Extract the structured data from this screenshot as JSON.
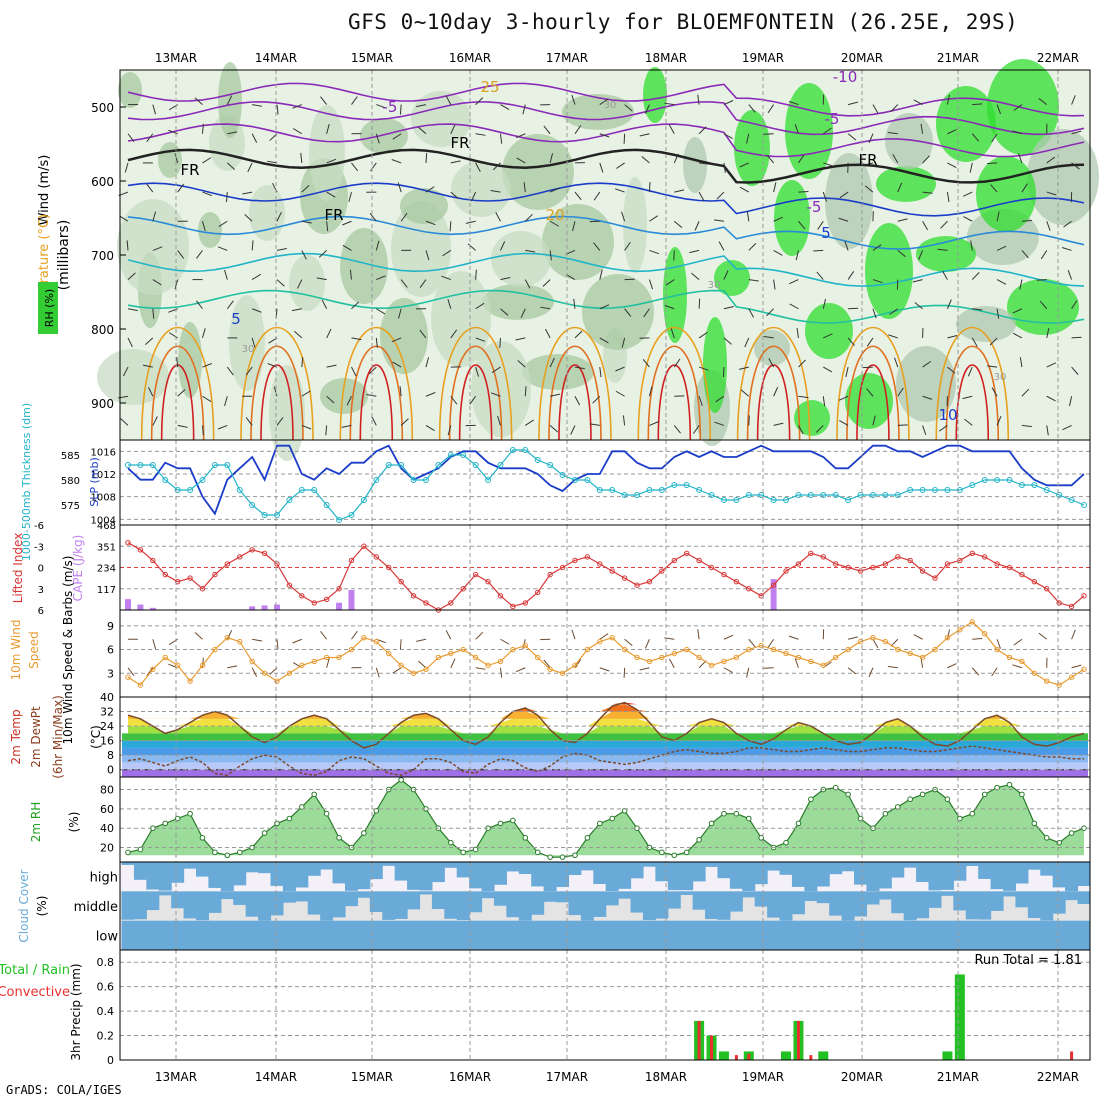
{
  "title": "GFS 0~10day 3-hourly for BLOEMFONTEIN (26.25E, 29S)",
  "credit": "GrADS: COLA/IGES",
  "dates": [
    "13MAR",
    "14MAR",
    "15MAR",
    "16MAR",
    "17MAR",
    "18MAR",
    "19MAR",
    "20MAR",
    "21MAR",
    "22MAR"
  ],
  "colors": {
    "rh_green": "#33cc33",
    "temp_orange": "#e8a020",
    "temp_red": "#d02020",
    "purple": "#8a2ab8",
    "slp_blue": "#1a3cc8",
    "thickness_cyan": "#22b4c8",
    "cape_violet": "#c080f0",
    "wind_orange": "#e89a30",
    "cloud_blue": "#6aaad8",
    "precip_green": "#22c022",
    "precip_red": "#e83030"
  },
  "chart_data": [
    {
      "type": "heatmap",
      "title": "",
      "ylabel": "Wind (m/s) Temperature (°C) RH (%) (millibars)",
      "y_ticks": [
        "500",
        "600",
        "700",
        "800",
        "900"
      ],
      "ylim": [
        950,
        450
      ],
      "isotherm_labels": [
        "-10",
        "-5",
        "-5",
        "FR",
        "FR",
        "FR",
        "FR",
        "-5",
        "5",
        "5",
        "10",
        "25",
        "20",
        "30",
        "30",
        "30",
        "30"
      ],
      "rh_legend": "RH (%)"
    },
    {
      "type": "line",
      "title": "",
      "ylabel_left": "1000-500mb Thickness (dm)",
      "ylabel_right": "SLP (mb)",
      "left_ticks": [
        "585",
        "580",
        "575"
      ],
      "right_ticks": [
        "1016",
        "1012",
        "1008",
        "1004"
      ],
      "series": [
        {
          "name": "SLP (mb)",
          "values": [
            1013,
            1011,
            1011,
            1014,
            1013,
            1013,
            1008,
            1005,
            1011,
            1013,
            1015,
            1011,
            1017,
            1017,
            1012,
            1011,
            1013,
            1012,
            1014,
            1014,
            1016,
            1017,
            1013,
            1011,
            1012,
            1013,
            1015,
            1016,
            1016,
            1014,
            1013,
            1013,
            1013,
            1012,
            1010,
            1009,
            1011,
            1012,
            1012,
            1016,
            1016,
            1014,
            1013,
            1013,
            1015,
            1016,
            1015,
            1016,
            1015,
            1015,
            1016,
            1017,
            1016,
            1016,
            1016,
            1016,
            1015,
            1013,
            1013,
            1015,
            1017,
            1017,
            1016,
            1016,
            1015,
            1016,
            1017,
            1017,
            1016,
            1016,
            1016,
            1016,
            1013,
            1011,
            1010,
            1010,
            1010,
            1012
          ]
        },
        {
          "name": "1000-500mb Thickness (dm)",
          "values": [
            583,
            583,
            583,
            580,
            578,
            578,
            580,
            583,
            583,
            578,
            575,
            573,
            573,
            576,
            578,
            578,
            575,
            572,
            573,
            576,
            580,
            583,
            583,
            580,
            580,
            583,
            585,
            585,
            583,
            580,
            583,
            586,
            586,
            584,
            583,
            581,
            580,
            580,
            578,
            578,
            577,
            577,
            578,
            578,
            579,
            579,
            578,
            577,
            576,
            576,
            577,
            577,
            576,
            576,
            577,
            577,
            577,
            577,
            576,
            577,
            577,
            577,
            577,
            578,
            578,
            578,
            578,
            578,
            579,
            580,
            580,
            580,
            579,
            579,
            578,
            577,
            576,
            575
          ]
        }
      ]
    },
    {
      "type": "bar",
      "title": "",
      "ylabel_left": "Lifted Index",
      "ylabel_right": "CAPE (J/kg)",
      "left_ticks": [
        "-6",
        "-3",
        "0",
        "3",
        "6"
      ],
      "right_ticks": [
        "468",
        "351",
        "234",
        "117"
      ],
      "cape_values": [
        60,
        30,
        12,
        0,
        0,
        0,
        0,
        0,
        0,
        0,
        20,
        25,
        30,
        0,
        0,
        0,
        0,
        40,
        110,
        0,
        0,
        0,
        0,
        0,
        0,
        0,
        0,
        0,
        0,
        0,
        0,
        0,
        0,
        0,
        0,
        0,
        0,
        0,
        0,
        0,
        0,
        0,
        0,
        0,
        0,
        0,
        0,
        0,
        0,
        0,
        0,
        0,
        170,
        0,
        0,
        0,
        0,
        0,
        0,
        0,
        0,
        0,
        0,
        0,
        0,
        0,
        0,
        0,
        0,
        0,
        0,
        0,
        0,
        0,
        0,
        0,
        0,
        0
      ],
      "lifted_index": [
        -3.5,
        -2.5,
        -1,
        1,
        2,
        1.5,
        3,
        1,
        -0.5,
        -1.5,
        -2.5,
        -2,
        -0.5,
        2.5,
        4,
        5,
        4.5,
        3,
        -1,
        -3,
        -1.5,
        0,
        2,
        4,
        5,
        6,
        5,
        3,
        1,
        2,
        4,
        5.5,
        5,
        3.5,
        1,
        0,
        -1,
        -1.5,
        -0.5,
        0.5,
        1.5,
        2.5,
        2,
        0.5,
        -1,
        -2,
        -1,
        0,
        1,
        2,
        3,
        4,
        2.5,
        0.5,
        -0.5,
        -2,
        -1.5,
        -0.5,
        0,
        0.5,
        0,
        -0.5,
        -1.5,
        -1,
        0.5,
        1.5,
        -0.5,
        -1,
        -2,
        -1.5,
        -0.5,
        0,
        1,
        2,
        3,
        5,
        5.5,
        4
      ]
    },
    {
      "type": "line",
      "title": "",
      "ylabel": "10m Wind Speed & Barbs (m/s)",
      "y_ticks": [
        "9",
        "6",
        "3"
      ],
      "series": [
        {
          "name": "10m Wind Speed",
          "values": [
            2.5,
            1.5,
            3.5,
            5,
            4,
            2,
            4,
            6,
            7.5,
            7,
            4.5,
            3,
            2,
            3,
            4,
            4.5,
            5,
            5,
            6,
            7.5,
            7,
            5.5,
            4,
            3,
            3.5,
            5,
            5.5,
            6,
            5,
            4,
            4.5,
            6,
            6.5,
            5,
            3.5,
            3,
            4,
            6,
            7,
            7.5,
            6,
            5,
            4.5,
            5,
            5.5,
            6,
            5,
            4,
            4.5,
            5,
            6,
            6.5,
            6,
            5.5,
            5,
            4.5,
            4,
            5,
            6,
            7,
            7.5,
            7,
            6,
            5.5,
            5,
            6,
            7.5,
            8.5,
            9.5,
            8,
            6,
            5,
            4.5,
            3,
            2,
            1.5,
            2.5,
            3.5
          ]
        }
      ]
    },
    {
      "type": "area",
      "title": "",
      "ylabel": "2m Temp 2m DewPt (6hr Min/Max) (°C)",
      "y_ticks": [
        "40",
        "32",
        "24",
        "16",
        "8",
        "0"
      ],
      "series": [
        {
          "name": "2m Temp",
          "values": [
            30,
            28,
            24,
            20,
            22,
            26,
            30,
            32,
            30,
            24,
            18,
            15,
            18,
            24,
            28,
            30,
            28,
            22,
            16,
            12,
            14,
            20,
            26,
            30,
            31,
            28,
            22,
            16,
            14,
            18,
            26,
            32,
            34,
            30,
            22,
            16,
            15,
            20,
            28,
            35,
            37,
            33,
            26,
            18,
            16,
            20,
            26,
            28,
            26,
            20,
            16,
            14,
            17,
            22,
            26,
            24,
            20,
            16,
            14,
            15,
            20,
            26,
            28,
            24,
            18,
            14,
            13,
            16,
            22,
            28,
            30,
            26,
            18,
            14,
            13,
            15,
            18,
            20
          ]
        },
        {
          "name": "2m DewPt",
          "values": [
            5,
            6,
            4,
            2,
            5,
            7,
            4,
            -2,
            -3,
            2,
            6,
            8,
            7,
            2,
            -2,
            -3,
            -1,
            5,
            7,
            6,
            2,
            -2,
            -3,
            0,
            6,
            6,
            4,
            -1,
            -2,
            3,
            6,
            5,
            1,
            -1,
            2,
            7,
            9,
            8,
            5,
            4,
            3,
            4,
            6,
            8,
            10,
            11,
            10,
            9,
            9,
            10,
            12,
            12,
            11,
            10,
            10,
            11,
            12,
            11,
            10,
            10,
            11,
            12,
            12,
            11,
            10,
            10,
            11,
            12,
            13,
            12,
            11,
            10,
            9,
            8,
            7,
            7,
            6,
            6
          ]
        }
      ]
    },
    {
      "type": "area",
      "title": "",
      "ylabel": "2m RH (%)",
      "y_ticks": [
        "80",
        "60",
        "40",
        "20"
      ],
      "series": [
        {
          "name": "2m RH",
          "values": [
            15,
            18,
            40,
            45,
            50,
            55,
            30,
            15,
            12,
            15,
            20,
            35,
            45,
            50,
            62,
            75,
            55,
            30,
            20,
            35,
            58,
            80,
            90,
            80,
            60,
            40,
            25,
            15,
            18,
            40,
            45,
            48,
            30,
            15,
            10,
            10,
            12,
            30,
            45,
            50,
            58,
            40,
            20,
            15,
            12,
            15,
            28,
            45,
            55,
            55,
            50,
            30,
            20,
            25,
            45,
            70,
            80,
            82,
            75,
            50,
            40,
            55,
            62,
            70,
            75,
            80,
            70,
            50,
            55,
            75,
            82,
            85,
            75,
            45,
            30,
            25,
            35,
            40
          ]
        }
      ]
    },
    {
      "type": "heatmap",
      "title": "",
      "ylabel": "Cloud Cover (%)",
      "row_labels": [
        "high",
        "middle",
        "low"
      ]
    },
    {
      "type": "bar",
      "title": "",
      "ylabel": "3hr Precip (mm)",
      "legend_left": "Total / Rain",
      "legend_left_red": "Convective",
      "annotation": "Run Total = 1.81",
      "y_ticks": [
        "0.8",
        "0.6",
        "0.4",
        "0.2",
        "0"
      ],
      "ylim": [
        0,
        0.9
      ],
      "series": [
        {
          "name": "Total",
          "values": [
            0,
            0,
            0,
            0,
            0,
            0,
            0,
            0,
            0,
            0,
            0,
            0,
            0,
            0,
            0,
            0,
            0,
            0,
            0,
            0,
            0,
            0,
            0,
            0,
            0,
            0,
            0,
            0,
            0,
            0,
            0,
            0,
            0,
            0,
            0,
            0,
            0,
            0,
            0,
            0,
            0,
            0,
            0,
            0,
            0,
            0,
            0.32,
            0.2,
            0.07,
            0,
            0.07,
            0,
            0,
            0.07,
            0.32,
            0,
            0.07,
            0,
            0,
            0,
            0,
            0,
            0,
            0,
            0,
            0,
            0.07,
            0.7,
            0,
            0,
            0,
            0,
            0,
            0,
            0,
            0,
            0,
            0
          ]
        },
        {
          "name": "Convective",
          "values": [
            0,
            0,
            0,
            0,
            0,
            0,
            0,
            0,
            0,
            0,
            0,
            0,
            0,
            0,
            0,
            0,
            0,
            0,
            0,
            0,
            0,
            0,
            0,
            0,
            0,
            0,
            0,
            0,
            0,
            0,
            0,
            0,
            0,
            0,
            0,
            0,
            0,
            0,
            0,
            0,
            0,
            0,
            0,
            0,
            0,
            0,
            0.32,
            0.2,
            0,
            0.04,
            0.05,
            0,
            0,
            0,
            0.32,
            0.04,
            0,
            0,
            0,
            0,
            0,
            0,
            0,
            0,
            0,
            0,
            0,
            0,
            0,
            0,
            0,
            0,
            0,
            0,
            0,
            0,
            0.07,
            0
          ]
        }
      ]
    }
  ]
}
